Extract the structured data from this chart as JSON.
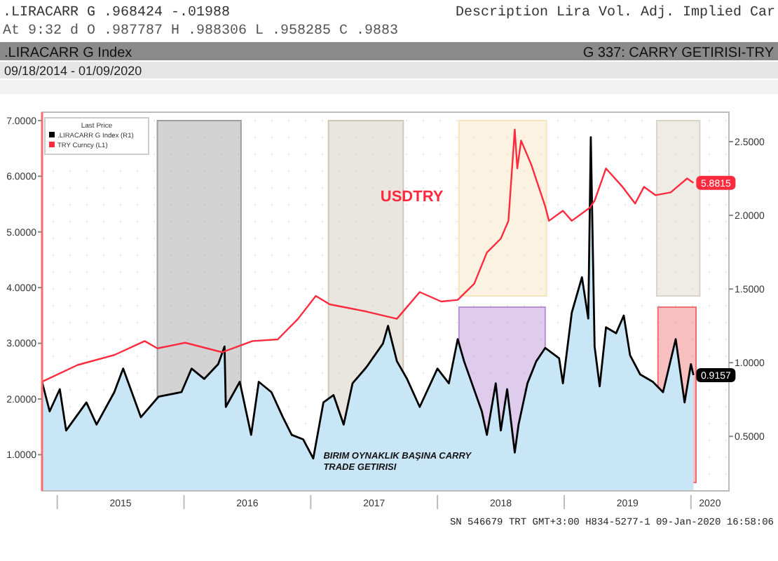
{
  "chart_data": {
    "type": "area",
    "title": "G 337: CARRY GETIRISI-TRY",
    "subtitle": ".LIRACARR G Index",
    "annotations": [
      ".LIRACARR G  .968424  -.01988",
      "Description Lira Vol. Adj. Implied Car",
      "At 9:32  d  O .987787  H .988306  L .958285  C .9883",
      "09/18/2014 - 01/09/2020",
      "USDTRY",
      "BIRIM OYNAKLIK BAŞINA CARRY TRADE GETIRISI",
      "SN 546679 TRT  GMT+3:00 H834-5277-1 09-Jan-2020 16:58:06"
    ],
    "xlim": [
      2014.88,
      2020.3
    ],
    "xticks": [
      {
        "value": 2015,
        "label": null
      },
      {
        "value": 2015.5,
        "label": "2015"
      },
      {
        "value": 2016,
        "label": null
      },
      {
        "value": 2016.5,
        "label": "2016"
      },
      {
        "value": 2017,
        "label": null
      },
      {
        "value": 2017.5,
        "label": "2017"
      },
      {
        "value": 2018,
        "label": null
      },
      {
        "value": 2018.5,
        "label": "2018"
      },
      {
        "value": 2019,
        "label": null
      },
      {
        "value": 2019.5,
        "label": "2019"
      },
      {
        "value": 2020,
        "label": null
      },
      {
        "value": 2020.15,
        "label": "2020"
      }
    ],
    "ylim": [
      0.35,
      7.15
    ],
    "yticks": [
      {
        "value": 1,
        "label": "1.0000"
      },
      {
        "value": 2,
        "label": "2.0000"
      },
      {
        "value": 3,
        "label": "3.0000"
      },
      {
        "value": 4,
        "label": "4.0000"
      },
      {
        "value": 5,
        "label": "5.0000"
      },
      {
        "value": 6,
        "label": "6.0000"
      },
      {
        "value": 7,
        "label": "7.0000"
      }
    ],
    "y2lim": [
      0.13,
      2.7
    ],
    "y2ticks": [
      {
        "value": 0.5,
        "label": "0.5000"
      },
      {
        "value": 1,
        "label": "1.0000"
      },
      {
        "value": 1.5,
        "label": "1.5000"
      },
      {
        "value": 2,
        "label": "2.0000"
      },
      {
        "value": 2.5,
        "label": "2.5000"
      }
    ],
    "legend": "top left",
    "legend_title": "Last Price",
    "bands": [
      {
        "axis": "x",
        "from": 2015.79,
        "to": 2016.45,
        "color": "#9e9e9e"
      },
      {
        "axis": "x",
        "from": 2017.14,
        "to": 2017.73,
        "color": "#cfc8b8"
      },
      {
        "axis": "x",
        "from": 2018.17,
        "to": 2018.86,
        "color": "#f7e3bd"
      },
      {
        "axis": "x",
        "from": 2018.17,
        "to": 2018.85,
        "color": "#b98fd6"
      },
      {
        "axis": "x",
        "from": 2019.73,
        "to": 2020.07,
        "color": "#d9d4c6"
      },
      {
        "axis": "x",
        "from": 2019.74,
        "to": 2020.04,
        "color": "#ee7070"
      }
    ],
    "series": [
      {
        "name": ".LIRACARR G Index (R1)",
        "axis": "y2",
        "color": "#000000",
        "x": [
          2014.88,
          2014.94,
          2015.02,
          2015.07,
          2015.23,
          2015.31,
          2015.45,
          2015.52,
          2015.66,
          2015.8,
          2015.98,
          2016.06,
          2016.16,
          2016.27,
          2016.32,
          2016.33,
          2016.44,
          2016.53,
          2016.59,
          2016.69,
          2016.78,
          2016.85,
          2016.94,
          2017.02,
          2017.1,
          2017.18,
          2017.26,
          2017.33,
          2017.44,
          2017.57,
          2017.61,
          2017.68,
          2017.76,
          2017.86,
          2018,
          2018.09,
          2018.16,
          2018.21,
          2018.35,
          2018.39,
          2018.46,
          2018.5,
          2018.55,
          2018.61,
          2018.64,
          2018.71,
          2018.78,
          2018.85,
          2018.96,
          2018.99,
          2019.06,
          2019.14,
          2019.19,
          2019.21,
          2019.24,
          2019.28,
          2019.33,
          2019.41,
          2019.47,
          2019.52,
          2019.6,
          2019.7,
          2019.78,
          2019.88,
          2019.95,
          2020,
          2020.02
        ],
        "values": [
          0.87,
          0.67,
          0.82,
          0.54,
          0.73,
          0.58,
          0.8,
          0.96,
          0.63,
          0.77,
          0.8,
          0.96,
          0.89,
          0.99,
          1.11,
          0.7,
          0.87,
          0.51,
          0.87,
          0.8,
          0.63,
          0.51,
          0.48,
          0.35,
          0.73,
          0.78,
          0.58,
          0.86,
          0.97,
          1.13,
          1.25,
          1.01,
          0.89,
          0.7,
          0.96,
          0.86,
          1.16,
          1.01,
          0.67,
          0.51,
          0.86,
          0.54,
          0.82,
          0.39,
          0.58,
          0.86,
          1.01,
          1.1,
          1.03,
          0.86,
          1.34,
          1.58,
          1.3,
          2.53,
          1.11,
          0.84,
          1.24,
          1.2,
          1.32,
          1.05,
          0.92,
          0.87,
          0.8,
          1.16,
          0.73,
          0.99,
          0.9157
        ],
        "value_labels": [
          null,
          null,
          null,
          null,
          null,
          null,
          null,
          null,
          null,
          null,
          null,
          null,
          null,
          null,
          null,
          null,
          null,
          null,
          null,
          null,
          null,
          null,
          null,
          null,
          null,
          null,
          null,
          null,
          null,
          null,
          null,
          null,
          null,
          null,
          null,
          null,
          null,
          null,
          null,
          null,
          null,
          null,
          null,
          null,
          null,
          null,
          null,
          null,
          null,
          null,
          null,
          null,
          null,
          null,
          null,
          null,
          null,
          null,
          null,
          null,
          null,
          null,
          null,
          null,
          null,
          null,
          "0.9157"
        ]
      },
      {
        "name": "TRY Curncy (L1)",
        "type": "line",
        "color": "#ff2a3d",
        "x": [
          2014.88,
          2015.16,
          2015.45,
          2015.69,
          2015.79,
          2016.01,
          2016.3,
          2016.54,
          2016.74,
          2016.9,
          2017.04,
          2017.15,
          2017.44,
          2017.68,
          2017.86,
          2018.03,
          2018.16,
          2018.29,
          2018.39,
          2018.5,
          2018.56,
          2018.61,
          2018.63,
          2018.66,
          2018.74,
          2018.85,
          2018.88,
          2018.99,
          2019.06,
          2019.2,
          2019.24,
          2019.33,
          2019.46,
          2019.56,
          2019.63,
          2019.72,
          2019.84,
          2019.97,
          2020.02
        ],
        "values": [
          2.31,
          2.61,
          2.79,
          3.04,
          2.91,
          3.01,
          2.84,
          3.04,
          3.07,
          3.44,
          3.85,
          3.7,
          3.57,
          3.44,
          3.92,
          3.75,
          3.78,
          4.07,
          4.63,
          4.88,
          5.2,
          6.84,
          6.14,
          6.64,
          6.21,
          5.46,
          5.2,
          5.38,
          5.2,
          5.43,
          5.56,
          6.14,
          5.81,
          5.51,
          5.81,
          5.66,
          5.71,
          5.96,
          5.8815
        ],
        "value_labels": [
          null,
          null,
          null,
          null,
          null,
          null,
          null,
          null,
          null,
          null,
          null,
          null,
          null,
          null,
          null,
          null,
          null,
          null,
          null,
          null,
          null,
          null,
          null,
          null,
          null,
          null,
          null,
          null,
          null,
          null,
          null,
          null,
          null,
          null,
          null,
          null,
          null,
          null,
          "5.8815"
        ]
      }
    ]
  }
}
